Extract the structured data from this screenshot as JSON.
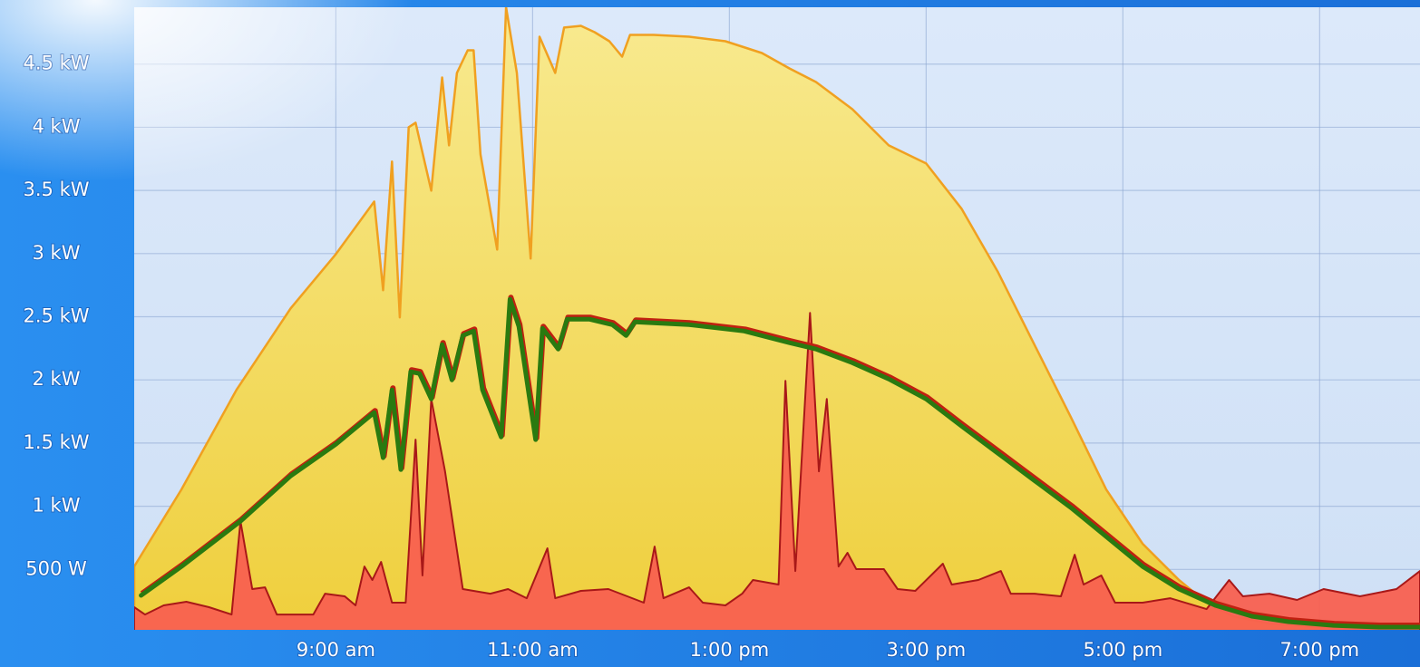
{
  "chart_data": {
    "type": "area",
    "xlim": [
      6.95,
      20.02
    ],
    "xticks": [
      {
        "value": 9,
        "label": "9:00 am"
      },
      {
        "value": 11,
        "label": "11:00 am"
      },
      {
        "value": 13,
        "label": "1:00 pm"
      },
      {
        "value": 15,
        "label": "3:00 pm"
      },
      {
        "value": 17,
        "label": "5:00 pm"
      },
      {
        "value": 19,
        "label": "7:00 pm"
      }
    ],
    "ylim": [
      0,
      4950
    ],
    "yticks": [
      {
        "value": 500,
        "label": "500 W"
      },
      {
        "value": 1000,
        "label": "1 kW"
      },
      {
        "value": 1500,
        "label": "1.5 kW"
      },
      {
        "value": 2000,
        "label": "2 kW"
      },
      {
        "value": 2500,
        "label": "2.5 kW"
      },
      {
        "value": 3000,
        "label": "3 kW"
      },
      {
        "value": 3500,
        "label": "3.5 kW"
      },
      {
        "value": 4000,
        "label": "4 kW"
      },
      {
        "value": 4500,
        "label": "4.5 kW"
      }
    ],
    "grid": true,
    "series": [
      {
        "color": "#f0a020",
        "fill": true,
        "x": [
          6.95,
          7.43,
          7.99,
          8.54,
          9.0,
          9.39,
          9.48,
          9.57,
          9.65,
          9.74,
          9.81,
          9.97,
          10.08,
          10.15,
          10.23,
          10.34,
          10.4,
          10.47,
          10.64,
          10.73,
          10.84,
          10.98,
          11.07,
          11.23,
          11.32,
          11.49,
          11.63,
          11.78,
          11.91,
          11.99,
          12.23,
          12.59,
          12.96,
          13.33,
          13.61,
          13.88,
          14.25,
          14.62,
          15.0,
          15.36,
          15.73,
          16.1,
          16.47,
          16.83,
          17.2,
          17.57,
          17.85,
          18.12,
          18.49,
          18.96,
          19.41,
          20.02
        ],
        "values": [
          523,
          1133,
          1921,
          2566,
          2996,
          3412,
          2710,
          3728,
          2495,
          4000,
          4036,
          3498,
          4394,
          3857,
          4430,
          4609,
          4609,
          3785,
          3032,
          4950,
          4430,
          2961,
          4717,
          4430,
          4789,
          4803,
          4753,
          4681,
          4559,
          4731,
          4731,
          4717,
          4681,
          4588,
          4466,
          4358,
          4143,
          3857,
          3713,
          3355,
          2853,
          2280,
          1706,
          1133,
          703,
          416,
          237,
          129,
          72,
          43,
          29,
          22
        ]
      },
      {
        "color": "#a81818",
        "fill": true,
        "x": [
          6.95,
          7.06,
          7.25,
          7.48,
          7.71,
          7.94,
          8.03,
          8.15,
          8.28,
          8.4,
          8.77,
          8.89,
          9.09,
          9.2,
          9.29,
          9.37,
          9.46,
          9.57,
          9.71,
          9.81,
          9.88,
          9.97,
          10.11,
          10.29,
          10.57,
          10.75,
          10.94,
          11.15,
          11.23,
          11.49,
          11.77,
          12.13,
          12.24,
          12.33,
          12.59,
          12.73,
          12.96,
          13.13,
          13.24,
          13.5,
          13.57,
          13.67,
          13.82,
          13.91,
          13.99,
          14.11,
          14.2,
          14.29,
          14.57,
          14.71,
          14.89,
          15.17,
          15.26,
          15.53,
          15.76,
          15.86,
          16.1,
          16.37,
          16.51,
          16.6,
          16.78,
          16.92,
          17.2,
          17.48,
          17.85,
          18.08,
          18.22,
          18.49,
          18.77,
          19.04,
          19.41,
          19.78,
          20.02
        ],
        "values": [
          201,
          143,
          215,
          244,
          201,
          143,
          882,
          344,
          358,
          143,
          143,
          308,
          287,
          215,
          523,
          416,
          559,
          237,
          237,
          1527,
          452,
          1849,
          1276,
          344,
          308,
          344,
          272,
          667,
          272,
          330,
          344,
          237,
          681,
          272,
          358,
          237,
          215,
          308,
          416,
          380,
          1993,
          487,
          2530,
          1276,
          1849,
          523,
          631,
          502,
          502,
          344,
          330,
          545,
          380,
          416,
          487,
          308,
          308,
          287,
          616,
          380,
          452,
          237,
          237,
          272,
          186,
          416,
          287,
          308,
          258,
          344,
          287,
          344,
          487
        ]
      },
      {
        "color": "#2a7a10",
        "fill": false,
        "x": [
          7.02,
          7.43,
          8.03,
          8.54,
          9.0,
          9.39,
          9.48,
          9.57,
          9.66,
          9.76,
          9.85,
          9.97,
          10.08,
          10.18,
          10.29,
          10.4,
          10.49,
          10.68,
          10.77,
          10.86,
          11.03,
          11.1,
          11.26,
          11.35,
          11.58,
          11.81,
          11.95,
          12.04,
          12.59,
          13.15,
          13.61,
          13.88,
          14.25,
          14.62,
          15.0,
          15.36,
          15.73,
          16.1,
          16.47,
          16.83,
          17.2,
          17.57,
          17.94,
          18.31,
          18.68,
          19.14,
          19.6,
          20.02
        ],
        "values": [
          294,
          523,
          882,
          1240,
          1491,
          1742,
          1384,
          1921,
          1290,
          2065,
          2050,
          1849,
          2280,
          2000,
          2351,
          2387,
          1921,
          1548,
          2638,
          2423,
          1527,
          2409,
          2244,
          2480,
          2480,
          2437,
          2351,
          2459,
          2437,
          2387,
          2294,
          2244,
          2136,
          2007,
          1849,
          1634,
          1419,
          1204,
          989,
          760,
          523,
          344,
          215,
          129,
          86,
          57,
          43,
          43
        ]
      }
    ]
  }
}
